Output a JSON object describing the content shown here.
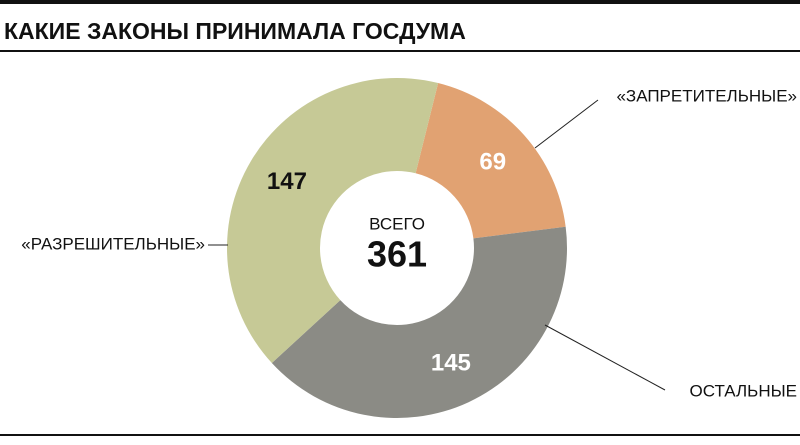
{
  "chart_data": {
    "type": "donut",
    "title": "КАКИЕ ЗАКОНЫ ПРИНИМАЛА ГОСДУМА",
    "categories": [
      "«ЗАПРЕТИТЕЛЬНЫЕ»",
      "ОСТАЛЬНЫЕ",
      "«РАЗРЕШИТЕЛЬНЫЕ»"
    ],
    "values": [
      69,
      145,
      147
    ],
    "colors": [
      "#e1a272",
      "#8b8b85",
      "#c6c996"
    ],
    "total_label": "ВСЕГО",
    "total": 361
  }
}
